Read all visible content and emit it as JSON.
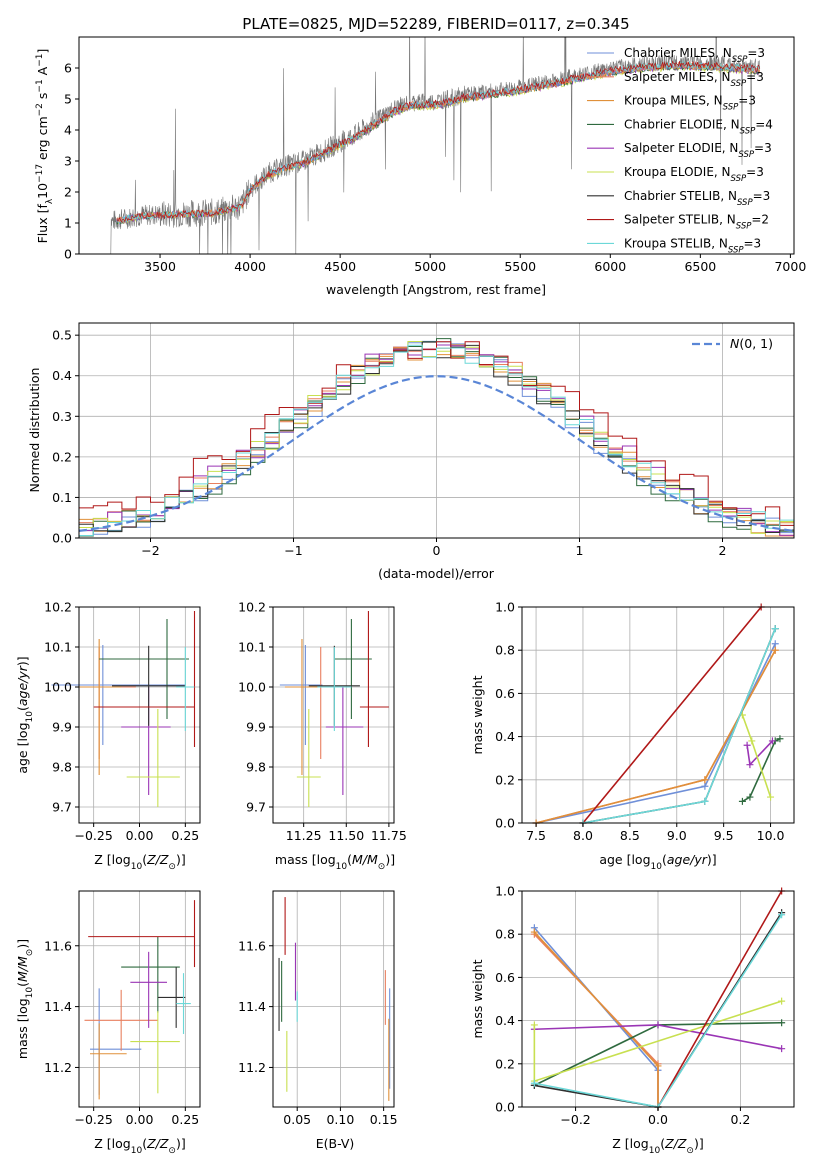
{
  "figure": {
    "title": "PLATE=0825, MJD=52289, FIBERID=0117, z=0.345"
  },
  "colors": {
    "chabrier_miles": "#6f8fd8",
    "salpeter_miles": "#e87f5f",
    "kroupa_miles": "#e0903a",
    "chabrier_elodie": "#2f6a3f",
    "salpeter_elodie": "#9a35b5",
    "kroupa_elodie": "#c8e050",
    "chabrier_stelib": "#303030",
    "salpeter_stelib": "#b01818",
    "kroupa_stelib": "#6cd8d8",
    "data": "#777777",
    "normal": "#5a86d6"
  },
  "chart_data": [
    {
      "id": "spectrum",
      "type": "line",
      "xlabel": "wavelength [Angstrom, rest frame]",
      "ylabel": "Flux [f$_\\lambda$10$^{-17}$ erg cm$^{-2}$ s$^{-1}$ A$^{-1}$]",
      "xlim": [
        3050,
        7020
      ],
      "ylim": [
        0,
        7
      ],
      "xticks": [
        3500,
        4000,
        4500,
        5000,
        5500,
        6000,
        6500,
        7000
      ],
      "yticks": [
        0,
        1,
        2,
        3,
        4,
        5,
        6
      ],
      "grid": false,
      "legend_position": "top-right",
      "legend": [
        {
          "text": "Chabrier MILES, N",
          "sub": "SSP",
          "tail": "=3",
          "color_key": "chabrier_miles"
        },
        {
          "text": "Salpeter MILES, N",
          "sub": "SSP",
          "tail": "=3",
          "color_key": "salpeter_miles"
        },
        {
          "text": "Kroupa MILES, N",
          "sub": "SSP",
          "tail": "=3",
          "color_key": "kroupa_miles"
        },
        {
          "text": "Chabrier ELODIE, N",
          "sub": "SSP",
          "tail": "=4",
          "color_key": "chabrier_elodie"
        },
        {
          "text": "Salpeter ELODIE, N",
          "sub": "SSP",
          "tail": "=3",
          "color_key": "salpeter_elodie"
        },
        {
          "text": "Kroupa ELODIE, N",
          "sub": "SSP",
          "tail": "=3",
          "color_key": "kroupa_elodie"
        },
        {
          "text": "Chabrier STELIB, N",
          "sub": "SSP",
          "tail": "=3",
          "color_key": "chabrier_stelib"
        },
        {
          "text": "Salpeter STELIB, N",
          "sub": "SSP",
          "tail": "=2",
          "color_key": "salpeter_stelib"
        },
        {
          "text": "Kroupa STELIB, N",
          "sub": "SSP",
          "tail": "=3",
          "color_key": "kroupa_stelib"
        }
      ],
      "data_xrange": [
        3220,
        6830
      ],
      "continuum": [
        [
          3220,
          1.05
        ],
        [
          3400,
          1.25
        ],
        [
          3600,
          1.3
        ],
        [
          3800,
          1.35
        ],
        [
          3950,
          1.55
        ],
        [
          4000,
          2.1
        ],
        [
          4100,
          2.6
        ],
        [
          4200,
          2.85
        ],
        [
          4300,
          3.0
        ],
        [
          4400,
          3.3
        ],
        [
          4500,
          3.6
        ],
        [
          4600,
          3.9
        ],
        [
          4700,
          4.3
        ],
        [
          4800,
          4.7
        ],
        [
          4900,
          4.9
        ],
        [
          5000,
          4.9
        ],
        [
          5100,
          5.0
        ],
        [
          5200,
          5.15
        ],
        [
          5400,
          5.3
        ],
        [
          5600,
          5.5
        ],
        [
          5800,
          5.75
        ],
        [
          6000,
          6.0
        ],
        [
          6200,
          6.15
        ],
        [
          6400,
          6.2
        ],
        [
          6600,
          6.15
        ],
        [
          6830,
          6.05
        ]
      ]
    },
    {
      "id": "residuals",
      "type": "line",
      "xlabel": "(data-model)/error",
      "ylabel": "Normed distribution",
      "xlim": [
        -2.5,
        2.5
      ],
      "ylim": [
        0,
        0.53
      ],
      "xticks": [
        -2,
        -1,
        0,
        1,
        2
      ],
      "yticks": [
        0.0,
        0.1,
        0.2,
        0.3,
        0.4,
        0.5
      ],
      "grid": true,
      "legend_position": "top-right",
      "legend_label": "N(0,1)",
      "bin_width": 0.1
    },
    {
      "id": "age-vs-Z",
      "type": "scatter",
      "xlabel": "Z [log10(Z/Z☉)]",
      "ylabel": "age  [log10(age/yr)]",
      "xlim": [
        -0.33,
        0.33
      ],
      "ylim": [
        9.66,
        10.2
      ],
      "xticks": [
        -0.25,
        0.0,
        0.25
      ],
      "yticks": [
        9.7,
        9.8,
        9.9,
        10.0,
        10.1,
        10.2
      ],
      "grid": true,
      "points": [
        {
          "k": "chabrier_miles",
          "x": -0.2,
          "y": 10.005,
          "xerr": [
            0.28,
            0.45
          ],
          "yerr": [
            0.15,
            0.1
          ]
        },
        {
          "k": "salpeter_miles",
          "x": -0.22,
          "y": 10.0,
          "xerr": [
            0.12,
            0.2
          ],
          "yerr": [
            0.18,
            0.1
          ]
        },
        {
          "k": "kroupa_miles",
          "x": -0.22,
          "y": 10.0,
          "xerr": [
            0.12,
            0.12
          ],
          "yerr": [
            0.22,
            0.12
          ]
        },
        {
          "k": "chabrier_elodie",
          "x": 0.15,
          "y": 10.07,
          "xerr": [
            0.37,
            0.12
          ],
          "yerr": [
            0.15,
            0.1
          ]
        },
        {
          "k": "salpeter_elodie",
          "x": 0.05,
          "y": 9.9,
          "xerr": [
            0.15,
            0.12
          ],
          "yerr": [
            0.17,
            0.1
          ]
        },
        {
          "k": "kroupa_elodie",
          "x": 0.1,
          "y": 9.775,
          "xerr": [
            0.17,
            0.12
          ],
          "yerr": [
            0.075,
            0.17
          ]
        },
        {
          "k": "chabrier_stelib",
          "x": 0.05,
          "y": 10.003,
          "xerr": [
            0.2,
            0.2
          ],
          "yerr": [
            0.1,
            0.1
          ]
        },
        {
          "k": "salpeter_stelib",
          "x": 0.3,
          "y": 9.95,
          "xerr": [
            0.55,
            0.0
          ],
          "yerr": [
            0.1,
            0.24
          ]
        },
        {
          "k": "kroupa_stelib",
          "x": 0.25,
          "y": 10.0,
          "xerr": [
            0.05,
            0.05
          ],
          "yerr": [
            0.11,
            0.1
          ]
        }
      ]
    },
    {
      "id": "age-vs-mass",
      "type": "scatter",
      "xlabel": "mass [log10(M/M☉)]",
      "ylabel": "",
      "xlim": [
        11.07,
        11.78
      ],
      "ylim": [
        9.66,
        10.2
      ],
      "xticks": [
        11.25,
        11.5,
        11.75
      ],
      "yticks": [
        9.7,
        9.8,
        9.9,
        10.0,
        10.1,
        10.2
      ],
      "grid": true,
      "points": [
        {
          "k": "chabrier_miles",
          "x": 11.26,
          "y": 10.005,
          "xerr": [
            0.15,
            0.1
          ],
          "yerr": [
            0.15,
            0.1
          ]
        },
        {
          "k": "salpeter_miles",
          "x": 11.35,
          "y": 10.0,
          "xerr": [
            0.1,
            0.1
          ],
          "yerr": [
            0.18,
            0.1
          ]
        },
        {
          "k": "kroupa_miles",
          "x": 11.24,
          "y": 10.0,
          "xerr": [
            0.1,
            0.1
          ],
          "yerr": [
            0.22,
            0.12
          ]
        },
        {
          "k": "chabrier_elodie",
          "x": 11.53,
          "y": 10.07,
          "xerr": [
            0.1,
            0.12
          ],
          "yerr": [
            0.15,
            0.1
          ]
        },
        {
          "k": "salpeter_elodie",
          "x": 11.48,
          "y": 9.9,
          "xerr": [
            0.1,
            0.12
          ],
          "yerr": [
            0.17,
            0.1
          ]
        },
        {
          "k": "kroupa_elodie",
          "x": 11.28,
          "y": 9.775,
          "xerr": [
            0.07,
            0.07
          ],
          "yerr": [
            0.075,
            0.17
          ]
        },
        {
          "k": "chabrier_stelib",
          "x": 11.43,
          "y": 10.003,
          "xerr": [
            0.15,
            0.15
          ],
          "yerr": [
            0.1,
            0.1
          ]
        },
        {
          "k": "salpeter_stelib",
          "x": 11.63,
          "y": 9.95,
          "xerr": [
            0.05,
            0.12
          ],
          "yerr": [
            0.1,
            0.24
          ]
        },
        {
          "k": "kroupa_stelib",
          "x": 11.43,
          "y": 10.0,
          "xerr": [
            0.1,
            0.1
          ],
          "yerr": [
            0.11,
            0.1
          ]
        }
      ]
    },
    {
      "id": "weight-vs-age",
      "type": "line",
      "xlabel": "age  [log10(age/yr)]",
      "ylabel": "mass weight",
      "xlim": [
        7.35,
        10.25
      ],
      "ylim": [
        0,
        1
      ],
      "xticks": [
        7.5,
        8.0,
        8.5,
        9.0,
        9.5,
        10.0
      ],
      "yticks": [
        0.0,
        0.2,
        0.4,
        0.6,
        0.8,
        1.0
      ],
      "grid": true,
      "series": [
        {
          "k": "chabrier_miles",
          "x": [
            7.5,
            9.3,
            10.05
          ],
          "y": [
            0.0,
            0.17,
            0.83
          ]
        },
        {
          "k": "salpeter_miles",
          "x": [
            7.5,
            9.3,
            10.05
          ],
          "y": [
            0.0,
            0.2,
            0.8
          ]
        },
        {
          "k": "kroupa_miles",
          "x": [
            7.5,
            9.3,
            10.05
          ],
          "y": [
            0.0,
            0.2,
            0.8
          ]
        },
        {
          "k": "chabrier_elodie",
          "x": [
            9.7,
            9.78,
            10.05,
            10.1
          ],
          "y": [
            0.1,
            0.12,
            0.38,
            0.39
          ]
        },
        {
          "k": "salpeter_elodie",
          "x": [
            9.75,
            9.78,
            10.02
          ],
          "y": [
            0.36,
            0.27,
            0.38
          ]
        },
        {
          "k": "kroupa_elodie",
          "x": [
            9.7,
            9.8,
            10.0
          ],
          "y": [
            0.5,
            0.38,
            0.12
          ]
        },
        {
          "k": "chabrier_stelib",
          "x": [
            8.0,
            9.3,
            10.05
          ],
          "y": [
            0.0,
            0.1,
            0.9
          ]
        },
        {
          "k": "salpeter_stelib",
          "x": [
            8.0,
            9.9
          ],
          "y": [
            0.0,
            1.0
          ]
        },
        {
          "k": "kroupa_stelib",
          "x": [
            8.0,
            9.3,
            10.05
          ],
          "y": [
            0.0,
            0.1,
            0.9
          ]
        }
      ]
    },
    {
      "id": "mass-vs-Z",
      "type": "scatter",
      "xlabel": "Z [log10(Z/Z☉)]",
      "ylabel": "mass [log10(M/M☉)]",
      "xlim": [
        -0.33,
        0.33
      ],
      "ylim": [
        11.07,
        11.78
      ],
      "xticks": [
        -0.25,
        0.0,
        0.25
      ],
      "yticks": [
        11.2,
        11.4,
        11.6
      ],
      "grid": true,
      "points": [
        {
          "k": "chabrier_miles",
          "x": -0.22,
          "y": 11.26,
          "xerr": [
            0.05,
            0.23
          ],
          "yerr": [
            0.15,
            0.2
          ]
        },
        {
          "k": "salpeter_miles",
          "x": -0.1,
          "y": 11.355,
          "xerr": [
            0.2,
            0.2
          ],
          "yerr": [
            0.1,
            0.1
          ]
        },
        {
          "k": "kroupa_miles",
          "x": -0.22,
          "y": 11.245,
          "xerr": [
            0.05,
            0.15
          ],
          "yerr": [
            0.15,
            0.1
          ]
        },
        {
          "k": "chabrier_elodie",
          "x": 0.1,
          "y": 11.53,
          "xerr": [
            0.2,
            0.12
          ],
          "yerr": [
            0.15,
            0.1
          ]
        },
        {
          "k": "salpeter_elodie",
          "x": 0.05,
          "y": 11.48,
          "xerr": [
            0.1,
            0.1
          ],
          "yerr": [
            0.15,
            0.1
          ]
        },
        {
          "k": "kroupa_elodie",
          "x": 0.1,
          "y": 11.285,
          "xerr": [
            0.15,
            0.12
          ],
          "yerr": [
            0.17,
            0.1
          ]
        },
        {
          "k": "chabrier_stelib",
          "x": 0.2,
          "y": 11.43,
          "xerr": [
            0.1,
            0.05
          ],
          "yerr": [
            0.1,
            0.1
          ]
        },
        {
          "k": "salpeter_stelib",
          "x": 0.3,
          "y": 11.63,
          "xerr": [
            0.58,
            0.0
          ],
          "yerr": [
            0.1,
            0.12
          ]
        },
        {
          "k": "kroupa_stelib",
          "x": 0.24,
          "y": 11.41,
          "xerr": [
            0.04,
            0.04
          ],
          "yerr": [
            0.1,
            0.1
          ]
        }
      ]
    },
    {
      "id": "mass-vs-ebv",
      "type": "scatter",
      "xlabel": "E(B-V)",
      "ylabel": "",
      "xlim": [
        0.022,
        0.162
      ],
      "ylim": [
        11.07,
        11.78
      ],
      "xticks": [
        0.05,
        0.1,
        0.15
      ],
      "yticks": [
        11.2,
        11.4,
        11.6
      ],
      "grid": true,
      "points": [
        {
          "k": "chabrier_miles",
          "x": 0.157,
          "y": 11.28,
          "yerr": [
            0.15,
            0.18
          ]
        },
        {
          "k": "salpeter_miles",
          "x": 0.152,
          "y": 11.44,
          "yerr": [
            0.1,
            0.08
          ]
        },
        {
          "k": "kroupa_miles",
          "x": 0.156,
          "y": 11.24,
          "yerr": [
            0.15,
            0.12
          ]
        },
        {
          "k": "chabrier_elodie",
          "x": 0.032,
          "y": 11.45,
          "yerr": [
            0.1,
            0.1
          ]
        },
        {
          "k": "salpeter_elodie",
          "x": 0.048,
          "y": 11.54,
          "yerr": [
            0.12,
            0.07
          ]
        },
        {
          "k": "kroupa_elodie",
          "x": 0.038,
          "y": 11.22,
          "yerr": [
            0.1,
            0.1
          ]
        },
        {
          "k": "chabrier_stelib",
          "x": 0.029,
          "y": 11.44,
          "yerr": [
            0.12,
            0.12
          ]
        },
        {
          "k": "salpeter_stelib",
          "x": 0.036,
          "y": 11.67,
          "yerr": [
            0.1,
            0.09
          ]
        },
        {
          "k": "kroupa_stelib",
          "x": 0.05,
          "y": 11.41,
          "yerr": [
            0.06,
            0.04
          ]
        }
      ]
    },
    {
      "id": "weight-vs-Z",
      "type": "line",
      "xlabel": "Z [log10(Z/Z☉)]",
      "ylabel": "mass weight",
      "xlim": [
        -0.33,
        0.33
      ],
      "ylim": [
        0,
        1
      ],
      "xticks": [
        -0.2,
        0.0,
        0.2
      ],
      "yticks": [
        0.0,
        0.2,
        0.4,
        0.6,
        0.8,
        1.0
      ],
      "grid": true,
      "series": [
        {
          "k": "chabrier_miles",
          "x": [
            -0.3,
            0.0,
            0.0
          ],
          "y": [
            0.83,
            0.17,
            0.0
          ]
        },
        {
          "k": "salpeter_miles",
          "x": [
            -0.3,
            0.0,
            0.0
          ],
          "y": [
            0.8,
            0.2,
            0.0
          ]
        },
        {
          "k": "kroupa_miles",
          "x": [
            -0.3,
            0.0,
            0.0
          ],
          "y": [
            0.81,
            0.19,
            0.0
          ]
        },
        {
          "k": "chabrier_elodie",
          "x": [
            -0.3,
            0.0,
            0.3
          ],
          "y": [
            0.1,
            0.38,
            0.39
          ]
        },
        {
          "k": "salpeter_elodie",
          "x": [
            -0.3,
            0.0,
            0.3
          ],
          "y": [
            0.36,
            0.38,
            0.27
          ]
        },
        {
          "k": "kroupa_elodie",
          "x": [
            -0.3,
            -0.3,
            0.3
          ],
          "y": [
            0.38,
            0.12,
            0.49
          ]
        },
        {
          "k": "chabrier_stelib",
          "x": [
            -0.3,
            0.0,
            0.3
          ],
          "y": [
            0.1,
            0.0,
            0.9
          ]
        },
        {
          "k": "salpeter_stelib",
          "x": [
            0.0,
            0.3
          ],
          "y": [
            0.0,
            1.0
          ]
        },
        {
          "k": "kroupa_stelib",
          "x": [
            -0.3,
            0.0,
            0.3
          ],
          "y": [
            0.11,
            0.0,
            0.89
          ]
        }
      ]
    }
  ]
}
